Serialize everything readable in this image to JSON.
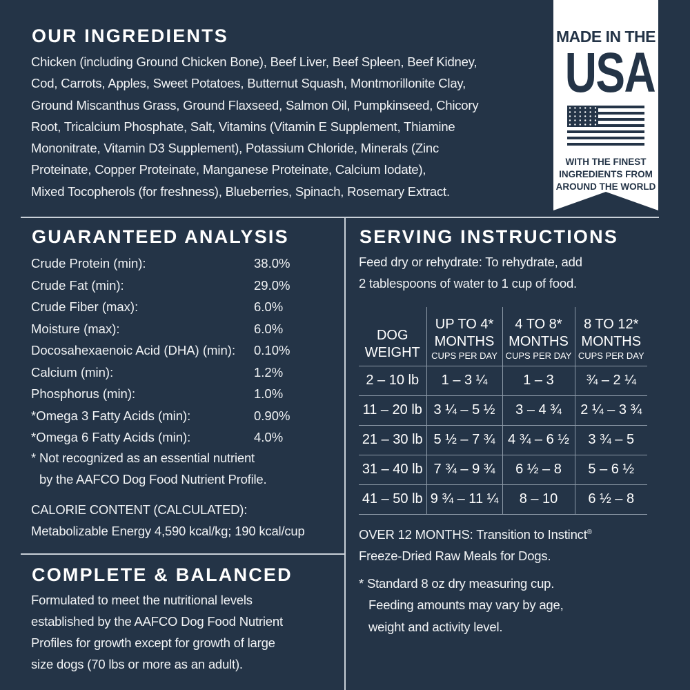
{
  "ingredients": {
    "title": "OUR INGREDIENTS",
    "lines": [
      "Chicken (including Ground Chicken Bone), Beef Liver, Beef Spleen, Beef Kidney,",
      "Cod, Carrots, Apples, Sweet Potatoes, Butternut Squash, Montmorillonite Clay,",
      "Ground Miscanthus Grass, Ground Flaxseed, Salmon Oil, Pumpkinseed, Chicory",
      "Root, Tricalcium Phosphate, Salt, Vitamins (Vitamin E Supplement, Thiamine",
      "Mononitrate, Vitamin D3 Supplement), Potassium Chloride, Minerals (Zinc",
      "Proteinate, Copper Proteinate, Manganese Proteinate, Calcium Iodate),",
      "Mixed Tocopherols (for freshness), Blueberries, Spinach, Rosemary Extract."
    ]
  },
  "badge": {
    "line1": "MADE IN THE",
    "line2": "USA",
    "line3": "WITH THE FINEST",
    "line4": "INGREDIENTS FROM",
    "line5": "AROUND THE WORLD",
    "icon": "us-flag-icon"
  },
  "analysis": {
    "title": "GUARANTEED ANALYSIS",
    "rows": [
      {
        "name": "Crude Protein (min):",
        "value": "38.0%"
      },
      {
        "name": "Crude Fat (min):",
        "value": "29.0%"
      },
      {
        "name": "Crude Fiber (max):",
        "value": "6.0%"
      },
      {
        "name": "Moisture (max):",
        "value": "6.0%"
      },
      {
        "name": "Docosahexaenoic Acid (DHA) (min):",
        "value": "0.10%"
      },
      {
        "name": "Calcium (min):",
        "value": "1.2%"
      },
      {
        "name": "Phosphorus (min):",
        "value": "1.0%"
      },
      {
        "name": "*Omega 3 Fatty Acids (min):",
        "value": "0.90%"
      },
      {
        "name": "*Omega 6 Fatty Acids (min):",
        "value": "4.0%"
      }
    ],
    "note1": "* Not recognized as an essential nutrient",
    "note2": "by the AAFCO Dog Food Nutrient Profile.",
    "calorie1": "CALORIE CONTENT (CALCULATED):",
    "calorie2": "Metabolizable Energy 4,590 kcal/kg; 190 kcal/cup"
  },
  "complete": {
    "title": "COMPLETE & BALANCED",
    "lines": [
      "Formulated to meet the nutritional levels",
      "established by the AAFCO Dog Food Nutrient",
      "Profiles for growth except for growth of large",
      "size dogs (70 lbs or more as an adult)."
    ]
  },
  "serving": {
    "title": "SERVING INSTRUCTIONS",
    "intro1": "Feed dry or rehydrate: To rehydrate, add",
    "intro2": "2 tablespoons of water to 1 cup of food.",
    "headers": [
      {
        "a": "DOG",
        "b": "WEIGHT",
        "c": ""
      },
      {
        "a": "UP TO 4*",
        "b": "MONTHS",
        "c": "CUPS PER DAY"
      },
      {
        "a": "4 TO 8*",
        "b": "MONTHS",
        "c": "CUPS PER DAY"
      },
      {
        "a": "8 TO 12*",
        "b": "MONTHS",
        "c": "CUPS PER DAY"
      }
    ],
    "rows": [
      [
        "2 – 10 lb",
        "1 – 3 ¼",
        "1 – 3",
        "¾ – 2 ¼"
      ],
      [
        "11 – 20 lb",
        "3 ¼ – 5 ½",
        "3 – 4 ¾",
        "2 ¼ – 3 ¾"
      ],
      [
        "21 – 30 lb",
        "5 ½ – 7 ¾",
        "4 ¾ – 6 ½",
        "3 ¾ – 5"
      ],
      [
        "31 – 40 lb",
        "7 ¾ – 9 ¾",
        "6 ½ – 8",
        "5 – 6 ½"
      ],
      [
        "41 – 50 lb",
        "9 ¾ – 11 ¼",
        "8 – 10",
        "6 ½ – 8"
      ]
    ],
    "over1": "OVER 12 MONTHS: Transition to Instinct",
    "over_reg": "®",
    "over2": "Freeze-Dried Raw Meals for Dogs.",
    "foot1": "* Standard 8 oz dry measuring cup.",
    "foot2": "Feeding amounts may vary by age,",
    "foot3": "weight and activity level."
  },
  "colors": {
    "background": "#243447",
    "text": "#ffffff"
  }
}
